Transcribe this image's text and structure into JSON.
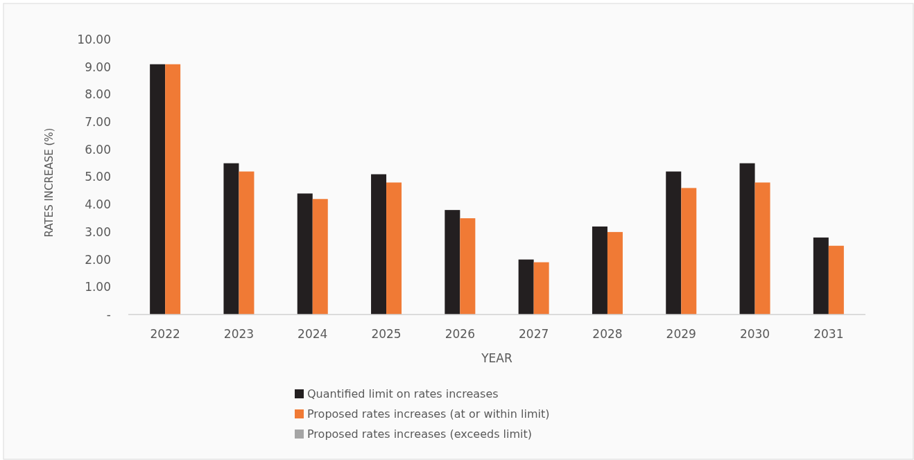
{
  "chart_data": {
    "type": "bar",
    "xlabel": "YEAR",
    "ylabel": "RATES INCREASE (%)",
    "categories": [
      "2022",
      "2023",
      "2024",
      "2025",
      "2026",
      "2027",
      "2028",
      "2029",
      "2030",
      "2031"
    ],
    "series": [
      {
        "name": "Quantified limit on rates increases",
        "color": "#231f20",
        "values": [
          9.1,
          5.5,
          4.4,
          5.1,
          3.8,
          2.0,
          3.2,
          5.2,
          5.5,
          2.8
        ]
      },
      {
        "name": "Proposed rates increases (at or within limit)",
        "color": "#f07a35",
        "values": [
          9.1,
          5.2,
          4.2,
          4.8,
          3.5,
          1.9,
          3.0,
          4.6,
          4.8,
          2.5
        ]
      },
      {
        "name": "Proposed rates increases (exceeds limit)",
        "color": "#a5a5a5",
        "values": [
          null,
          null,
          null,
          null,
          null,
          null,
          null,
          null,
          null,
          null
        ]
      }
    ],
    "ylim": [
      0,
      10
    ],
    "yticks": [
      {
        "value": 0,
        "label": "-"
      },
      {
        "value": 1,
        "label": "1.00"
      },
      {
        "value": 2,
        "label": "2.00"
      },
      {
        "value": 3,
        "label": "3.00"
      },
      {
        "value": 4,
        "label": "4.00"
      },
      {
        "value": 5,
        "label": "5.00"
      },
      {
        "value": 6,
        "label": "6.00"
      },
      {
        "value": 7,
        "label": "7.00"
      },
      {
        "value": 8,
        "label": "8.00"
      },
      {
        "value": 9,
        "label": "9.00"
      },
      {
        "value": 10,
        "label": "10.00"
      }
    ],
    "grid": false,
    "legend": "bottom"
  }
}
